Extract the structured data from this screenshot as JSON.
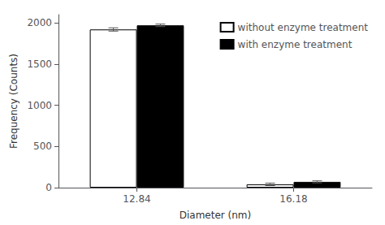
{
  "chart_data": {
    "type": "bar",
    "categories": [
      "12.84",
      "16.18"
    ],
    "series": [
      {
        "name": "without enzyme treatment",
        "color": "white",
        "values": [
          1920,
          40
        ],
        "errors": [
          20,
          15
        ]
      },
      {
        "name": "with enzyme treatment",
        "color": "black",
        "values": [
          1970,
          70
        ],
        "errors": [
          15,
          12
        ]
      }
    ],
    "xlabel": "Diameter (nm)",
    "ylabel": "Frequency (Counts)",
    "ylim": [
      0,
      2100
    ],
    "yticks": [
      0,
      500,
      1000,
      1500,
      2000
    ],
    "grid": false,
    "legend": "upper right"
  }
}
